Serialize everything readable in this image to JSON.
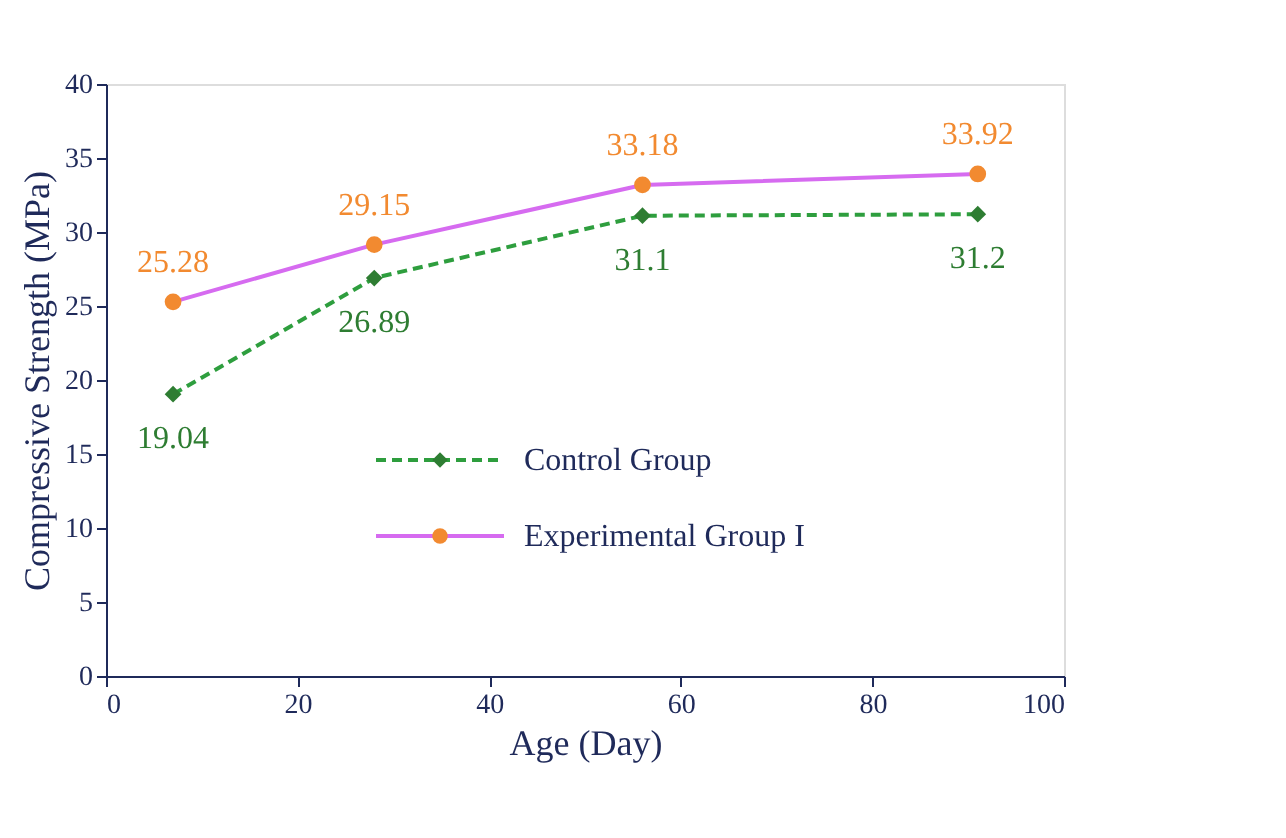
{
  "chart_data": {
    "type": "line",
    "xlabel": "Age (Day)",
    "ylabel": "Compressive Strength (MPa)",
    "x": [
      7,
      28,
      56,
      91
    ],
    "series": [
      {
        "name": "Control Group",
        "color": "#2e9e3e",
        "colors": [
          "#2e7d32",
          "#2e7d32",
          "#2e7d32",
          "#2e7d32"
        ],
        "values": [
          19.04,
          26.89,
          31.1,
          31.2
        ],
        "line_style": "dashed",
        "marker": "diamond"
      },
      {
        "name": "Experimental Group I",
        "color": "#d66bf0",
        "colors": [
          "#f28a30",
          "#f28a30",
          "#f28a30",
          "#f28a30"
        ],
        "values": [
          25.28,
          29.15,
          33.18,
          33.92
        ],
        "line_style": "solid",
        "marker": "circle"
      }
    ],
    "xlim": [
      0,
      100
    ],
    "xticks": [
      0,
      20,
      40,
      60,
      80,
      100
    ],
    "ylim": [
      0,
      40
    ],
    "yticks": [
      0,
      5,
      10,
      15,
      20,
      25,
      30,
      35,
      40
    ],
    "data_labels": true,
    "grid": false,
    "legend": "bottom"
  }
}
